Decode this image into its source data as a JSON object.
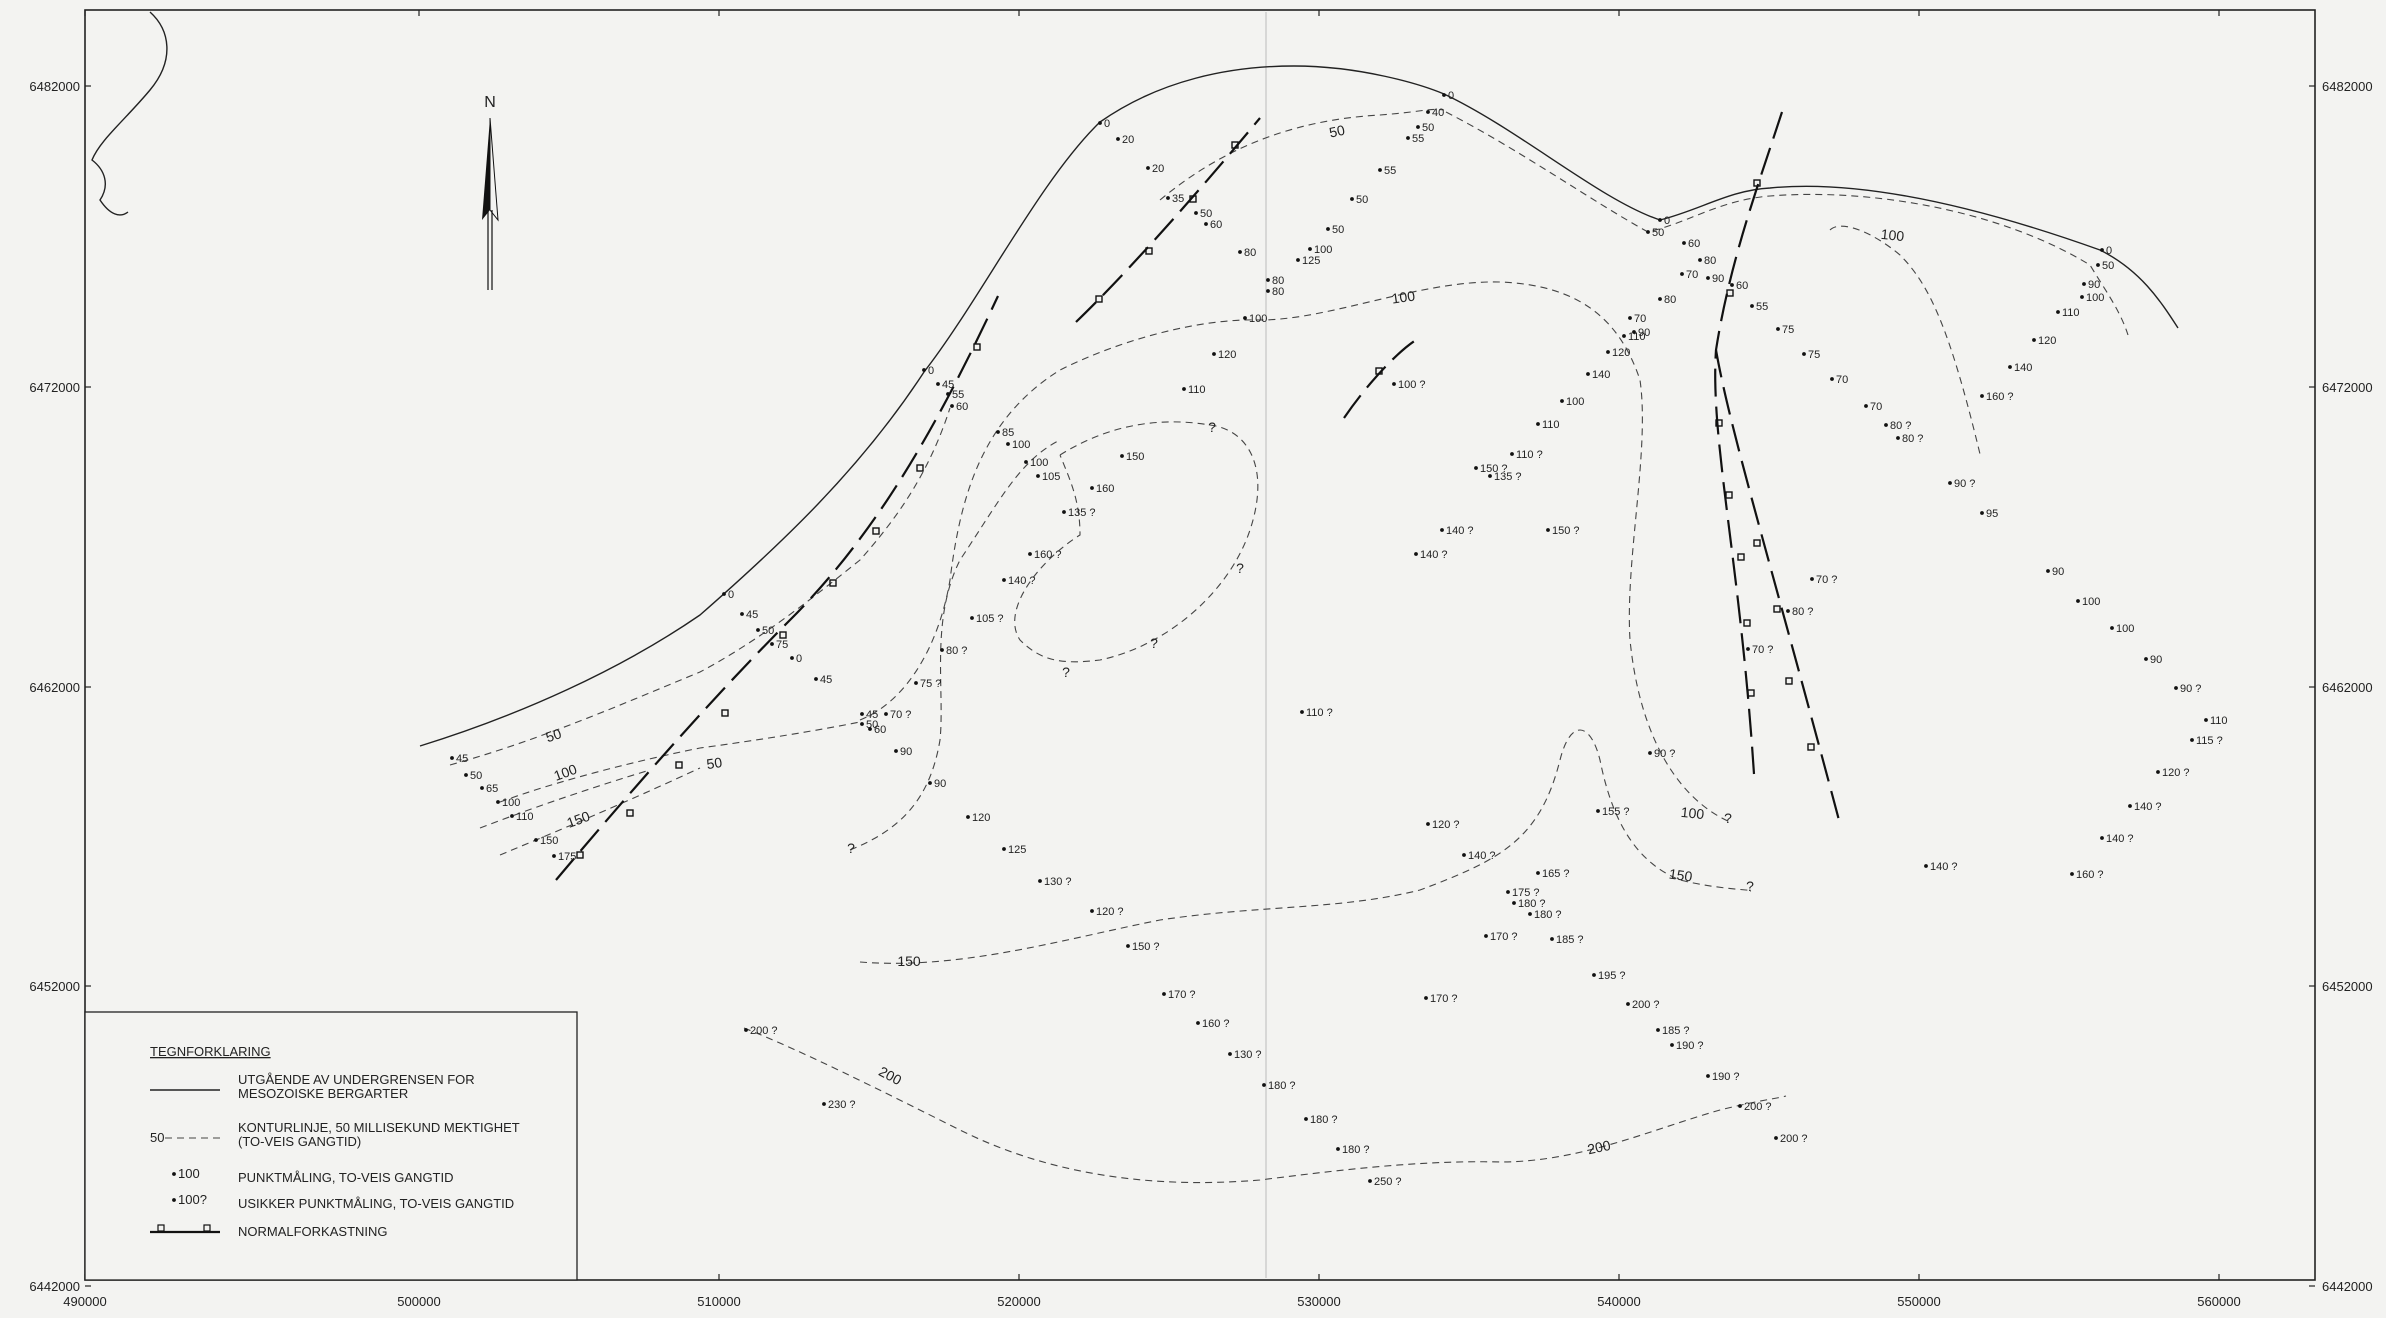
{
  "map": {
    "north_label": "N",
    "x_ticks": [
      {
        "value": "490000",
        "x": 60
      },
      {
        "value": "500000",
        "x": 394
      },
      {
        "value": "510000",
        "x": 694
      },
      {
        "value": "520000",
        "x": 994
      },
      {
        "value": "530000",
        "x": 1294
      },
      {
        "value": "540000",
        "x": 1594
      },
      {
        "value": "550000",
        "x": 1894
      },
      {
        "value": "560000",
        "x": 2194
      }
    ],
    "y_ticks": [
      {
        "value": "6482000",
        "y": 86
      },
      {
        "value": "6472000",
        "y": 387
      },
      {
        "value": "6462000",
        "y": 687
      },
      {
        "value": "6452000",
        "y": 986
      },
      {
        "value": "6442000",
        "y": 1286
      }
    ],
    "contour_labels": [
      {
        "text": "50",
        "x": 1338,
        "y": 136,
        "rot": -12
      },
      {
        "text": "100",
        "x": 1404,
        "y": 302,
        "rot": -8
      },
      {
        "text": "100",
        "x": 1892,
        "y": 240,
        "rot": 6
      },
      {
        "text": "50",
        "x": 555,
        "y": 740,
        "rot": -18
      },
      {
        "text": "100",
        "x": 567,
        "y": 777,
        "rot": -20
      },
      {
        "text": "150",
        "x": 580,
        "y": 824,
        "rot": -20
      },
      {
        "text": "50",
        "x": 715,
        "y": 768,
        "rot": -8
      },
      {
        "text": "150",
        "x": 909,
        "y": 966,
        "rot": 0
      },
      {
        "text": "200",
        "x": 888,
        "y": 1080,
        "rot": 28
      },
      {
        "text": "200",
        "x": 1600,
        "y": 1152,
        "rot": -12
      },
      {
        "text": "150",
        "x": 1680,
        "y": 880,
        "rot": 8
      },
      {
        "text": "100",
        "x": 1692,
        "y": 818,
        "rot": 6
      },
      {
        "text": "?",
        "x": 1728,
        "y": 823,
        "rot": 0
      },
      {
        "text": "?",
        "x": 1750,
        "y": 891,
        "rot": 0
      },
      {
        "text": "?",
        "x": 1212,
        "y": 432,
        "rot": 0
      },
      {
        "text": "?",
        "x": 1240,
        "y": 573,
        "rot": 0
      },
      {
        "text": "?",
        "x": 1154,
        "y": 648,
        "rot": 0
      },
      {
        "text": "?",
        "x": 1066,
        "y": 677,
        "rot": 0
      },
      {
        "text": "?",
        "x": 851,
        "y": 853,
        "rot": 0
      }
    ],
    "points": [
      {
        "t": "0",
        "x": 1100,
        "y": 123
      },
      {
        "t": "20",
        "x": 1118,
        "y": 139
      },
      {
        "t": "20",
        "x": 1148,
        "y": 168
      },
      {
        "t": "35",
        "x": 1168,
        "y": 198
      },
      {
        "t": "50",
        "x": 1196,
        "y": 213
      },
      {
        "t": "60",
        "x": 1206,
        "y": 224
      },
      {
        "t": "80",
        "x": 1240,
        "y": 252
      },
      {
        "t": "80",
        "x": 1268,
        "y": 280
      },
      {
        "t": "80",
        "x": 1268,
        "y": 291
      },
      {
        "t": "100",
        "x": 1245,
        "y": 318
      },
      {
        "t": "125",
        "x": 1298,
        "y": 260
      },
      {
        "t": "100",
        "x": 1310,
        "y": 249
      },
      {
        "t": "50",
        "x": 1328,
        "y": 229
      },
      {
        "t": "50",
        "x": 1352,
        "y": 199
      },
      {
        "t": "55",
        "x": 1380,
        "y": 170
      },
      {
        "t": "55",
        "x": 1408,
        "y": 138
      },
      {
        "t": "50",
        "x": 1418,
        "y": 127
      },
      {
        "t": "40",
        "x": 1428,
        "y": 112
      },
      {
        "t": "0",
        "x": 1444,
        "y": 95
      },
      {
        "t": "120",
        "x": 1214,
        "y": 354
      },
      {
        "t": "110",
        "x": 1184,
        "y": 389
      },
      {
        "t": "0",
        "x": 1660,
        "y": 220
      },
      {
        "t": "50",
        "x": 1648,
        "y": 232
      },
      {
        "t": "60",
        "x": 1684,
        "y": 243
      },
      {
        "t": "80",
        "x": 1700,
        "y": 260
      },
      {
        "t": "70",
        "x": 1682,
        "y": 274
      },
      {
        "t": "90",
        "x": 1708,
        "y": 278
      },
      {
        "t": "80",
        "x": 1660,
        "y": 299
      },
      {
        "t": "60",
        "x": 1732,
        "y": 285
      },
      {
        "t": "55",
        "x": 1752,
        "y": 306
      },
      {
        "t": "75",
        "x": 1778,
        "y": 329
      },
      {
        "t": "75",
        "x": 1804,
        "y": 354
      },
      {
        "t": "70",
        "x": 1832,
        "y": 379
      },
      {
        "t": "70",
        "x": 1866,
        "y": 406
      },
      {
        "t": "80 ?",
        "x": 1886,
        "y": 425
      },
      {
        "t": "80 ?",
        "x": 1898,
        "y": 438
      },
      {
        "t": "70",
        "x": 1630,
        "y": 318
      },
      {
        "t": "90",
        "x": 1634,
        "y": 332
      },
      {
        "t": "110",
        "x": 1624,
        "y": 336
      },
      {
        "t": "120",
        "x": 1608,
        "y": 352
      },
      {
        "t": "140",
        "x": 1588,
        "y": 374
      },
      {
        "t": "100",
        "x": 1562,
        "y": 401
      },
      {
        "t": "110",
        "x": 1538,
        "y": 424
      },
      {
        "t": "110 ?",
        "x": 1512,
        "y": 454
      },
      {
        "t": "135 ?",
        "x": 1490,
        "y": 476
      },
      {
        "t": "150 ?",
        "x": 1476,
        "y": 468
      },
      {
        "t": "140 ?",
        "x": 1442,
        "y": 530
      },
      {
        "t": "140 ?",
        "x": 1416,
        "y": 554
      },
      {
        "t": "150 ?",
        "x": 1548,
        "y": 530
      },
      {
        "t": "100 ?",
        "x": 1394,
        "y": 384
      },
      {
        "t": "0",
        "x": 2102,
        "y": 250
      },
      {
        "t": "50",
        "x": 2098,
        "y": 265
      },
      {
        "t": "90",
        "x": 2084,
        "y": 284
      },
      {
        "t": "100",
        "x": 2082,
        "y": 297
      },
      {
        "t": "110",
        "x": 2058,
        "y": 312
      },
      {
        "t": "120",
        "x": 2034,
        "y": 340
      },
      {
        "t": "140",
        "x": 2010,
        "y": 367
      },
      {
        "t": "160 ?",
        "x": 1982,
        "y": 396
      },
      {
        "t": "90 ?",
        "x": 1950,
        "y": 483
      },
      {
        "t": "95",
        "x": 1982,
        "y": 513
      },
      {
        "t": "90",
        "x": 2048,
        "y": 571
      },
      {
        "t": "100",
        "x": 2078,
        "y": 601
      },
      {
        "t": "100",
        "x": 2112,
        "y": 628
      },
      {
        "t": "90",
        "x": 2146,
        "y": 659
      },
      {
        "t": "90 ?",
        "x": 2176,
        "y": 688
      },
      {
        "t": "110",
        "x": 2206,
        "y": 720
      },
      {
        "t": "115 ?",
        "x": 2192,
        "y": 740
      },
      {
        "t": "120 ?",
        "x": 2158,
        "y": 772
      },
      {
        "t": "140 ?",
        "x": 2130,
        "y": 806
      },
      {
        "t": "140 ?",
        "x": 2102,
        "y": 838
      },
      {
        "t": "160 ?",
        "x": 2072,
        "y": 874
      },
      {
        "t": "140 ?",
        "x": 1926,
        "y": 866
      },
      {
        "t": "70 ?",
        "x": 1812,
        "y": 579
      },
      {
        "t": "80 ?",
        "x": 1788,
        "y": 611
      },
      {
        "t": "70 ?",
        "x": 1748,
        "y": 649
      },
      {
        "t": "90 ?",
        "x": 1650,
        "y": 753
      },
      {
        "t": "155 ?",
        "x": 1598,
        "y": 811
      },
      {
        "t": "0",
        "x": 924,
        "y": 370
      },
      {
        "t": "45",
        "x": 938,
        "y": 384
      },
      {
        "t": "55",
        "x": 948,
        "y": 394
      },
      {
        "t": "60",
        "x": 952,
        "y": 406
      },
      {
        "t": "85",
        "x": 998,
        "y": 432
      },
      {
        "t": "100",
        "x": 1008,
        "y": 444
      },
      {
        "t": "100",
        "x": 1026,
        "y": 462
      },
      {
        "t": "105",
        "x": 1038,
        "y": 476
      },
      {
        "t": "150",
        "x": 1122,
        "y": 456
      },
      {
        "t": "160",
        "x": 1092,
        "y": 488
      },
      {
        "t": "135 ?",
        "x": 1064,
        "y": 512
      },
      {
        "t": "160 ?",
        "x": 1030,
        "y": 554
      },
      {
        "t": "140 ?",
        "x": 1004,
        "y": 580
      },
      {
        "t": "105 ?",
        "x": 972,
        "y": 618
      },
      {
        "t": "80 ?",
        "x": 942,
        "y": 650
      },
      {
        "t": "75 ?",
        "x": 916,
        "y": 683
      },
      {
        "t": "70 ?",
        "x": 886,
        "y": 714
      },
      {
        "t": "45",
        "x": 862,
        "y": 714
      },
      {
        "t": "50",
        "x": 862,
        "y": 724
      },
      {
        "t": "60",
        "x": 870,
        "y": 729
      },
      {
        "t": "90",
        "x": 896,
        "y": 751
      },
      {
        "t": "90",
        "x": 930,
        "y": 783
      },
      {
        "t": "120",
        "x": 968,
        "y": 817
      },
      {
        "t": "125",
        "x": 1004,
        "y": 849
      },
      {
        "t": "130 ?",
        "x": 1040,
        "y": 881
      },
      {
        "t": "120 ?",
        "x": 1092,
        "y": 911
      },
      {
        "t": "150 ?",
        "x": 1128,
        "y": 946
      },
      {
        "t": "170 ?",
        "x": 1164,
        "y": 994
      },
      {
        "t": "160 ?",
        "x": 1198,
        "y": 1023
      },
      {
        "t": "130 ?",
        "x": 1230,
        "y": 1054
      },
      {
        "t": "180 ?",
        "x": 1264,
        "y": 1085
      },
      {
        "t": "180 ?",
        "x": 1306,
        "y": 1119
      },
      {
        "t": "180 ?",
        "x": 1338,
        "y": 1149
      },
      {
        "t": "250 ?",
        "x": 1370,
        "y": 1181
      },
      {
        "t": "110 ?",
        "x": 1302,
        "y": 712
      },
      {
        "t": "0",
        "x": 724,
        "y": 594
      },
      {
        "t": "45",
        "x": 742,
        "y": 614
      },
      {
        "t": "50",
        "x": 758,
        "y": 630
      },
      {
        "t": "75",
        "x": 772,
        "y": 644
      },
      {
        "t": "0",
        "x": 792,
        "y": 658
      },
      {
        "t": "45",
        "x": 816,
        "y": 679
      },
      {
        "t": "45",
        "x": 452,
        "y": 758
      },
      {
        "t": "50",
        "x": 466,
        "y": 775
      },
      {
        "t": "65",
        "x": 482,
        "y": 788
      },
      {
        "t": "100",
        "x": 498,
        "y": 802
      },
      {
        "t": "110",
        "x": 512,
        "y": 816
      },
      {
        "t": "150",
        "x": 536,
        "y": 840
      },
      {
        "t": "175",
        "x": 554,
        "y": 856
      },
      {
        "t": "120 ?",
        "x": 1428,
        "y": 824
      },
      {
        "t": "140 ?",
        "x": 1464,
        "y": 855
      },
      {
        "t": "165 ?",
        "x": 1538,
        "y": 873
      },
      {
        "t": "175 ?",
        "x": 1508,
        "y": 892
      },
      {
        "t": "180 ?",
        "x": 1514,
        "y": 903
      },
      {
        "t": "180 ?",
        "x": 1530,
        "y": 914
      },
      {
        "t": "170 ?",
        "x": 1486,
        "y": 936
      },
      {
        "t": "185 ?",
        "x": 1552,
        "y": 939
      },
      {
        "t": "195 ?",
        "x": 1594,
        "y": 975
      },
      {
        "t": "200 ?",
        "x": 1628,
        "y": 1004
      },
      {
        "t": "185 ?",
        "x": 1658,
        "y": 1030
      },
      {
        "t": "190 ?",
        "x": 1672,
        "y": 1045
      },
      {
        "t": "190 ?",
        "x": 1708,
        "y": 1076
      },
      {
        "t": "200 ?",
        "x": 1740,
        "y": 1106
      },
      {
        "t": "200 ?",
        "x": 1776,
        "y": 1138
      },
      {
        "t": "170 ?",
        "x": 1426,
        "y": 998
      },
      {
        "t": "200 ?",
        "x": 746,
        "y": 1030
      },
      {
        "t": "230 ?",
        "x": 824,
        "y": 1104
      }
    ]
  },
  "legend": {
    "title": "TEGNFORKLARING",
    "items": [
      {
        "type": "solid",
        "label_prefix": "",
        "lines": [
          "UTGÅENDE AV UNDERGRENSEN FOR",
          "MESOZOISKE BERGARTER"
        ]
      },
      {
        "type": "dashed",
        "label_prefix": "50",
        "lines": [
          "KONTURLINJE, 50 MILLISEKUND MEKTIGHET",
          "(TO-VEIS GANGTID)"
        ]
      },
      {
        "type": "point",
        "label_prefix": "100",
        "lines": [
          "PUNKTMÅLING, TO-VEIS GANGTID"
        ]
      },
      {
        "type": "point",
        "label_prefix": "100?",
        "lines": [
          "USIKKER PUNKTMÅLING, TO-VEIS GANGTID"
        ]
      },
      {
        "type": "fault",
        "label_prefix": "",
        "lines": [
          "NORMALFORKASTNING"
        ]
      }
    ]
  }
}
